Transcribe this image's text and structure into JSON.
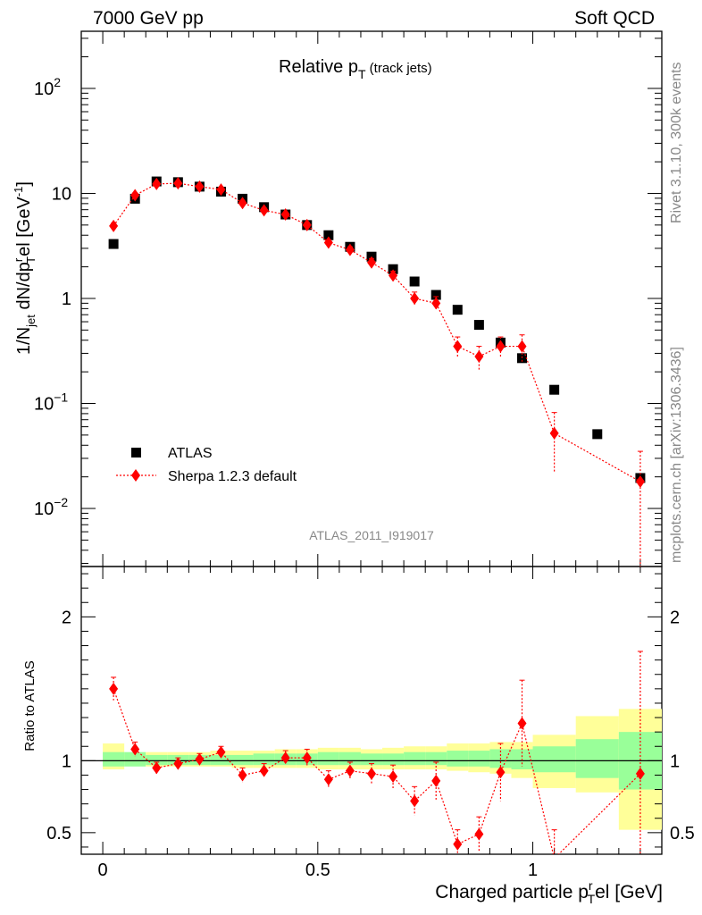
{
  "header": {
    "left": "7000 GeV pp",
    "right": "Soft QCD"
  },
  "side": {
    "rivet": "Rivet 3.1.10,  300k events",
    "mcplots": "mcplots.cern.ch [arXiv:1306.3436]"
  },
  "title": {
    "main": "Relative p",
    "sub": "T",
    "suffix": " (track jets)"
  },
  "analysis_id": "ATLAS_2011_I919017",
  "legend": {
    "atlas": "ATLAS",
    "sherpa": "Sherpa 1.2.3 default"
  },
  "top_ylabel": {
    "a": "1/N",
    "a_sub": "jet",
    "b": " dN/dp",
    "b_sup": "r",
    "b_sub": "T",
    "c": "el [GeV",
    "c_sup": "-1",
    "d": "]"
  },
  "ratio_ylabel": "Ratio to ATLAS",
  "xlabel": {
    "a": "Charged particle p",
    "a_sup": "r",
    "a_sub": "T",
    "b": "el [GeV]"
  },
  "top_yticks": [
    {
      "v": 100,
      "base": "10",
      "exp": "2"
    },
    {
      "v": 10,
      "base": "10",
      "exp": ""
    },
    {
      "v": 1,
      "base": "1",
      "exp": ""
    },
    {
      "v": 0.1,
      "base": "10",
      "exp": "−1"
    },
    {
      "v": 0.01,
      "base": "10",
      "exp": "−2"
    }
  ],
  "ratio_yticks": [
    "2",
    "1",
    "0.5"
  ],
  "xticks": [
    "0",
    "0.5",
    "1"
  ],
  "colors": {
    "sherpa": "#ff0000",
    "band_inner": "#99ff99",
    "band_outer": "#ffff99"
  },
  "chart_data": {
    "type": "scatter",
    "x_range": [
      -0.05,
      1.3
    ],
    "top_ylim": [
      0.0028,
      350
    ],
    "top_yscale": "log",
    "ratio_ylim": [
      0.35,
      2.35
    ],
    "bins": [
      [
        0.0,
        0.05
      ],
      [
        0.05,
        0.1
      ],
      [
        0.1,
        0.15
      ],
      [
        0.15,
        0.2
      ],
      [
        0.2,
        0.25
      ],
      [
        0.25,
        0.3
      ],
      [
        0.3,
        0.35
      ],
      [
        0.35,
        0.4
      ],
      [
        0.4,
        0.45
      ],
      [
        0.45,
        0.5
      ],
      [
        0.5,
        0.55
      ],
      [
        0.55,
        0.6
      ],
      [
        0.6,
        0.65
      ],
      [
        0.65,
        0.7
      ],
      [
        0.7,
        0.75
      ],
      [
        0.75,
        0.8
      ],
      [
        0.8,
        0.85
      ],
      [
        0.85,
        0.9
      ],
      [
        0.9,
        0.95
      ],
      [
        0.95,
        1.0
      ],
      [
        1.0,
        1.1
      ],
      [
        1.1,
        1.2
      ],
      [
        1.2,
        1.3
      ]
    ],
    "series": [
      {
        "name": "ATLAS",
        "x": [
          0.025,
          0.075,
          0.125,
          0.175,
          0.225,
          0.275,
          0.325,
          0.375,
          0.425,
          0.475,
          0.525,
          0.575,
          0.625,
          0.675,
          0.725,
          0.775,
          0.825,
          0.875,
          0.925,
          0.975,
          1.05,
          1.15,
          1.25
        ],
        "y": [
          3.3,
          8.9,
          13.0,
          12.8,
          11.6,
          10.4,
          8.9,
          7.4,
          6.3,
          5.0,
          4.0,
          3.1,
          2.5,
          1.9,
          1.45,
          1.08,
          0.78,
          0.56,
          0.38,
          0.27,
          0.135,
          0.051,
          0.0195
        ],
        "band_inner": [
          [
            0.96,
            1.06
          ],
          [
            0.96,
            1.06
          ],
          [
            0.97,
            1.04
          ],
          [
            0.97,
            1.04
          ],
          [
            0.97,
            1.04
          ],
          [
            0.97,
            1.04
          ],
          [
            0.97,
            1.04
          ],
          [
            0.97,
            1.05
          ],
          [
            0.97,
            1.05
          ],
          [
            0.97,
            1.05
          ],
          [
            0.97,
            1.06
          ],
          [
            0.97,
            1.06
          ],
          [
            0.97,
            1.05
          ],
          [
            0.97,
            1.05
          ],
          [
            0.97,
            1.06
          ],
          [
            0.97,
            1.06
          ],
          [
            0.96,
            1.07
          ],
          [
            0.96,
            1.07
          ],
          [
            0.95,
            1.08
          ],
          [
            0.94,
            1.08
          ],
          [
            0.92,
            1.1
          ],
          [
            0.88,
            1.15
          ],
          [
            0.8,
            1.2
          ]
        ],
        "band_outer": [
          [
            0.94,
            1.12
          ],
          [
            0.97,
            1.04
          ],
          [
            0.96,
            1.06
          ],
          [
            0.96,
            1.06
          ],
          [
            0.96,
            1.06
          ],
          [
            0.96,
            1.07
          ],
          [
            0.95,
            1.07
          ],
          [
            0.95,
            1.07
          ],
          [
            0.95,
            1.08
          ],
          [
            0.95,
            1.08
          ],
          [
            0.94,
            1.09
          ],
          [
            0.94,
            1.09
          ],
          [
            0.94,
            1.08
          ],
          [
            0.94,
            1.09
          ],
          [
            0.94,
            1.1
          ],
          [
            0.94,
            1.1
          ],
          [
            0.93,
            1.12
          ],
          [
            0.92,
            1.12
          ],
          [
            0.91,
            1.13
          ],
          [
            0.88,
            1.13
          ],
          [
            0.81,
            1.18
          ],
          [
            0.78,
            1.31
          ],
          [
            0.52,
            1.36
          ]
        ]
      },
      {
        "name": "Sherpa 1.2.3 default",
        "x": [
          0.025,
          0.075,
          0.125,
          0.175,
          0.225,
          0.275,
          0.325,
          0.375,
          0.425,
          0.475,
          0.525,
          0.575,
          0.625,
          0.675,
          0.725,
          0.775,
          0.825,
          0.875,
          0.925,
          0.975,
          1.05,
          1.25
        ],
        "y": [
          4.9,
          9.6,
          12.3,
          12.5,
          11.6,
          10.9,
          8.1,
          6.9,
          6.3,
          5.0,
          3.4,
          2.9,
          2.2,
          1.65,
          1.0,
          0.9,
          0.35,
          0.28,
          0.35,
          0.35,
          0.052,
          0.018
        ],
        "yerr": [
          0.3,
          0.5,
          0.6,
          0.6,
          0.6,
          0.5,
          0.4,
          0.4,
          0.3,
          0.3,
          0.2,
          0.2,
          0.2,
          0.17,
          0.15,
          0.14,
          0.08,
          0.07,
          0.08,
          0.1,
          0.03,
          0.017
        ],
        "ratio": [
          1.5,
          1.08,
          0.95,
          0.98,
          1.01,
          1.06,
          0.9,
          0.93,
          1.02,
          1.02,
          0.87,
          0.93,
          0.91,
          0.89,
          0.72,
          0.86,
          0.42,
          0.49,
          0.92,
          1.26,
          0.32,
          0.91
        ],
        "ratio_err": [
          0.08,
          0.05,
          0.04,
          0.04,
          0.04,
          0.04,
          0.05,
          0.05,
          0.05,
          0.06,
          0.06,
          0.06,
          0.07,
          0.08,
          0.1,
          0.13,
          0.1,
          0.12,
          0.2,
          0.3,
          0.2,
          0.85
        ]
      }
    ]
  }
}
